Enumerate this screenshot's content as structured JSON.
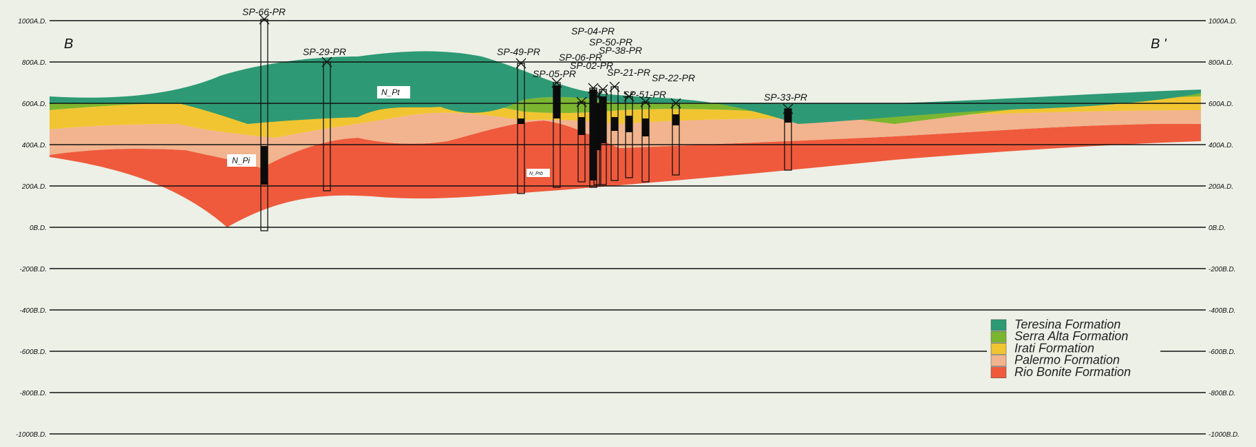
{
  "section": {
    "start_label": "B",
    "end_label": "B '"
  },
  "elevation_labels": [
    "1000A.D.",
    "800A.D.",
    "600A.D.",
    "400A.D.",
    "200A.D.",
    "0B.D.",
    "-200B.D.",
    "-400B.D.",
    "-600B.D.",
    "-800B.D.",
    "-1000B.D."
  ],
  "elevations": [
    1000,
    800,
    600,
    400,
    200,
    0,
    -200,
    -400,
    -600,
    -800,
    -1000
  ],
  "wells": [
    "SP-66-PR",
    "SP-29-PR",
    "SP-49-PR",
    "SP-05-PR",
    "SP-06-PR",
    "SP-04-PR",
    "SP-50-PR",
    "SP-02-PR",
    "SP-38-PR",
    "SP-21-PR",
    "SP-51-PR",
    "SP-22-PR",
    "SP-33-PR"
  ],
  "formation_labels": {
    "teresina": "N_Pt",
    "irati": "N_Pi",
    "rio_bonito": "N_Prb"
  },
  "legend": [
    {
      "label": "Teresina Formation",
      "color": "#2e9a75"
    },
    {
      "label": "Serra Alta Formation",
      "color": "#7cb631"
    },
    {
      "label": "Irati Formation",
      "color": "#f1c531"
    },
    {
      "label": "Palermo Formation",
      "color": "#f1b48e"
    },
    {
      "label": "Rio Bonite Formation",
      "color": "#ef5a3c"
    }
  ]
}
